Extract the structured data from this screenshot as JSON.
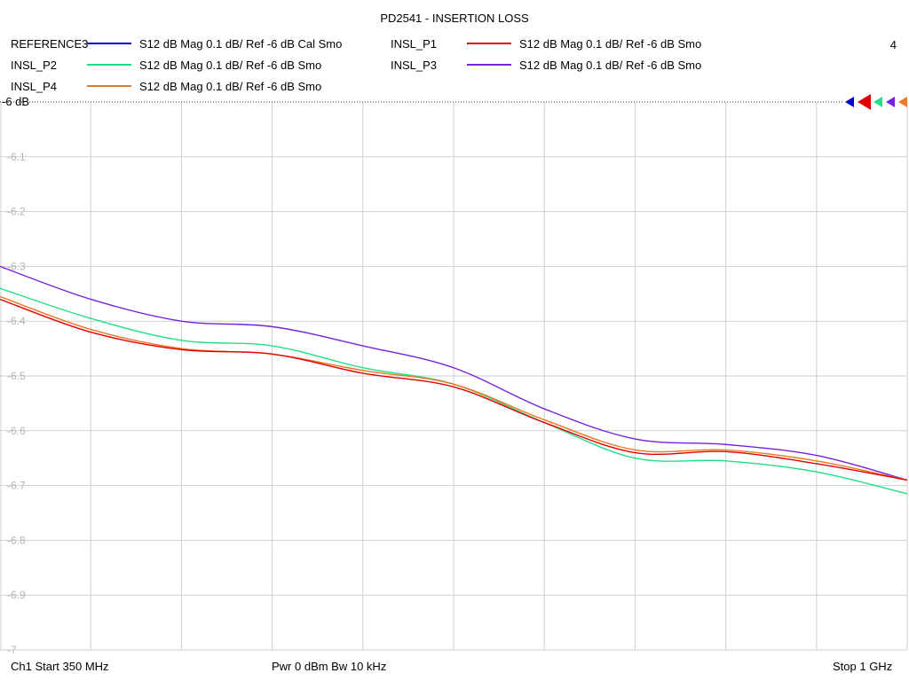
{
  "title": "PD2541 - INSERTION LOSS",
  "window_number": "4",
  "legend": [
    {
      "name": "REFERENCE3",
      "desc": "S12  dB Mag  0.1 dB/ Ref -6 dB  Cal Smo",
      "color": "#0000cc"
    },
    {
      "name": "INSL_P1",
      "desc": "S12  dB Mag  0.1 dB/ Ref -6 dB  Smo",
      "color": "#e00000"
    },
    {
      "name": "INSL_P2",
      "desc": "S12  dB Mag  0.1 dB/ Ref -6 dB  Smo",
      "color": "#22dd88"
    },
    {
      "name": "INSL_P3",
      "desc": "S12  dB Mag  0.1 dB/ Ref -6 dB  Smo",
      "color": "#7722dd"
    },
    {
      "name": "INSL_P4",
      "desc": "S12  dB Mag  0.1 dB/ Ref -6 dB  Smo",
      "color": "#ee7722"
    }
  ],
  "status": {
    "start": "Ch1  Start  350 MHz",
    "power": "Pwr  0 dBm  Bw  10 kHz",
    "stop": "Stop  1 GHz"
  },
  "chart_data": {
    "type": "line",
    "title": "PD2541 - INSERTION LOSS",
    "xlim": [
      350,
      1000
    ],
    "ylim": [
      -7,
      -6
    ],
    "x_unit": "MHz",
    "ref_label": "-6 dB",
    "y_ticks": [
      "-6.1",
      "-6.2",
      "-6.3",
      "-6.4",
      "-6.5",
      "-6.6",
      "-6.7",
      "-6.8",
      "-6.9",
      "-7"
    ],
    "grid": true,
    "x_divisions": 10,
    "series": [
      {
        "name": "INSL_P3",
        "color": "#7722dd",
        "x": [
          350,
          415,
          480,
          545,
          610,
          675,
          740,
          805,
          870,
          935,
          1000
        ],
        "y": [
          -6.3,
          -6.36,
          -6.4,
          -6.41,
          -6.445,
          -6.485,
          -6.56,
          -6.615,
          -6.625,
          -6.645,
          -6.69
        ]
      },
      {
        "name": "INSL_P2",
        "color": "#22dd88",
        "x": [
          350,
          415,
          480,
          545,
          610,
          675,
          740,
          805,
          870,
          935,
          1000
        ],
        "y": [
          -6.34,
          -6.395,
          -6.435,
          -6.445,
          -6.485,
          -6.515,
          -6.585,
          -6.65,
          -6.655,
          -6.675,
          -6.715
        ]
      },
      {
        "name": "INSL_P4",
        "color": "#ee7722",
        "x": [
          350,
          415,
          480,
          545,
          610,
          675,
          740,
          805,
          870,
          935,
          1000
        ],
        "y": [
          -6.355,
          -6.415,
          -6.45,
          -6.46,
          -6.49,
          -6.515,
          -6.58,
          -6.635,
          -6.635,
          -6.655,
          -6.69
        ]
      },
      {
        "name": "INSL_P1",
        "color": "#e00000",
        "x": [
          350,
          415,
          480,
          545,
          610,
          675,
          740,
          805,
          870,
          935,
          1000
        ],
        "y": [
          -6.36,
          -6.42,
          -6.452,
          -6.46,
          -6.495,
          -6.52,
          -6.585,
          -6.64,
          -6.638,
          -6.66,
          -6.69
        ]
      }
    ]
  }
}
